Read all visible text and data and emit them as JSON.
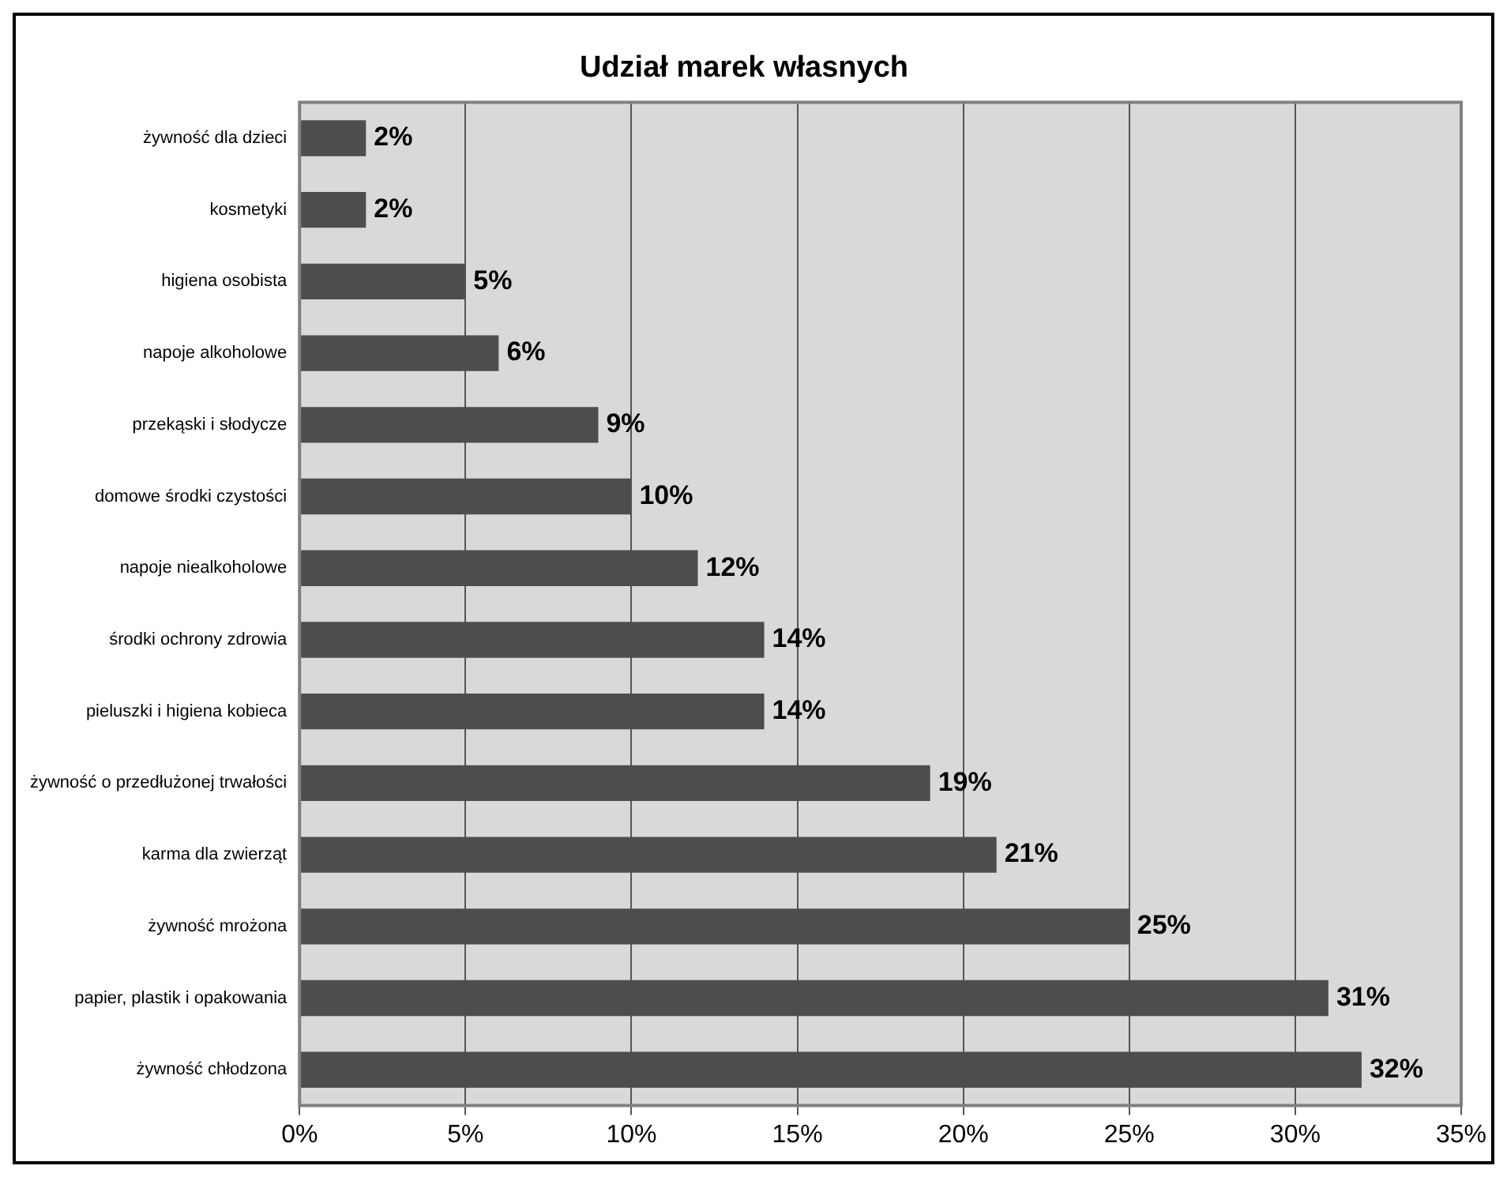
{
  "chart_data": {
    "type": "bar",
    "orientation": "horizontal",
    "title": "Udział marek własnych",
    "categories": [
      "żywność dla dzieci",
      "kosmetyki",
      "higiena osobista",
      "napoje alkoholowe",
      "przekąski i słodycze",
      "domowe środki czystości",
      "napoje niealkoholowe",
      "środki ochrony zdrowia",
      "pieluszki i higiena kobieca",
      "żywność o przedłużonej trwałości",
      "karma dla zwierząt",
      "żywność mrożona",
      "papier, plastik i opakowania",
      "żywność chłodzona"
    ],
    "values": [
      2,
      2,
      5,
      6,
      9,
      10,
      12,
      14,
      14,
      19,
      21,
      25,
      31,
      32
    ],
    "value_labels": [
      "2%",
      "2%",
      "5%",
      "6%",
      "9%",
      "10%",
      "12%",
      "14%",
      "14%",
      "19%",
      "21%",
      "25%",
      "31%",
      "32%"
    ],
    "color": "#4d4d4d",
    "xlim": [
      0,
      35
    ],
    "xticks": [
      {
        "value": 0,
        "label": "0%"
      },
      {
        "value": 5,
        "label": "5%"
      },
      {
        "value": 10,
        "label": "10%"
      },
      {
        "value": 15,
        "label": "15%"
      },
      {
        "value": 20,
        "label": "20%"
      },
      {
        "value": 25,
        "label": "25%"
      },
      {
        "value": 30,
        "label": "30%"
      },
      {
        "value": 35,
        "label": "35%"
      }
    ],
    "grid": "x",
    "legend": false
  }
}
